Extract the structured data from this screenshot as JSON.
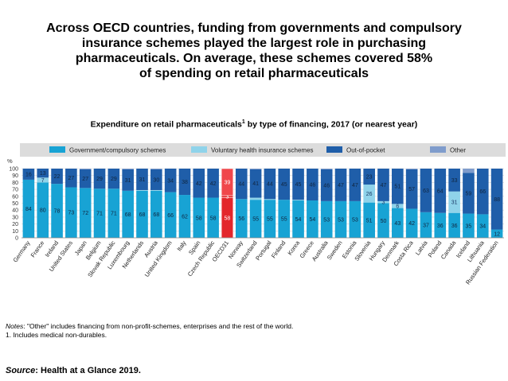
{
  "headline": {
    "line1": "Across OECD countries, funding from governments and compulsory",
    "line2": "insurance schemes played the largest role in purchasing",
    "line3": "pharmaceuticals. On average, these schemes covered 58%",
    "line4": "of spending on retail pharmaceuticals"
  },
  "subtitle": {
    "text": "Expenditure on retail pharmaceuticals",
    "footnote_mark": "1",
    "suffix": " by type of financing, 2017 (or nearest year)"
  },
  "notes": {
    "label": "Notes",
    "line1": ": \"Other\" includes financing from non-profit-schemes, enterprises and the rest of the world.",
    "line2": "1. Includes medical non-durables."
  },
  "source": {
    "label": "Source",
    "text": ": Health at a Glance 2019."
  },
  "colors": {
    "government": "#18a3d4",
    "voluntary": "#8fd3ea",
    "out_of_pocket": "#1f5ea9",
    "other": "#7f9ccc",
    "highlight": "#e3262b",
    "legend_band": "#dcdcdc"
  },
  "chart_data": {
    "type": "bar",
    "stacked": true,
    "y_unit": "%",
    "ylim": [
      0,
      100
    ],
    "yticks": [
      0,
      10,
      20,
      30,
      40,
      50,
      60,
      70,
      80,
      90,
      100
    ],
    "legend_position": "top",
    "highlight_category": "OECD31",
    "categories": [
      "Germany",
      "France",
      "Ireland",
      "United States",
      "Japan",
      "Belgium",
      "Slovak Republic",
      "Luxembourg",
      "Netherlands",
      "Austria",
      "United Kingdom",
      "Italy",
      "Spain",
      "Czech Republic",
      "OECD31",
      "Norway",
      "Switzerland",
      "Portugal",
      "Finland",
      "Korea",
      "Greece",
      "Australia",
      "Sweden",
      "Estonia",
      "Slovenia",
      "Hungary",
      "Denmark",
      "Costa Rica",
      "Latvia",
      "Poland",
      "Canada",
      "Iceland",
      "Lithuania",
      "Russian Federation"
    ],
    "series": [
      {
        "name": "Government/compulsory schemes",
        "values": [
          84,
          80,
          78,
          73,
          72,
          71,
          71,
          68,
          68,
          68,
          66,
          62,
          58,
          58,
          58,
          56,
          55,
          55,
          55,
          54,
          54,
          53,
          53,
          53,
          51,
          50,
          43,
          42,
          37,
          36,
          36,
          35,
          34,
          12
        ],
        "labels": [
          "84",
          "80",
          "78",
          "73",
          "72",
          "71",
          "71",
          "68",
          "68",
          "68",
          "66",
          "62",
          "58",
          "58",
          "58",
          "56",
          "55",
          "55",
          "55",
          "54",
          "54",
          "53",
          "53",
          "53",
          "51",
          "50",
          "43",
          "42",
          "37",
          "36",
          "36",
          "35",
          "34",
          "12"
        ]
      },
      {
        "name": "Voluntary health insurance schemes",
        "values": [
          0,
          7,
          0,
          0,
          0,
          0,
          0,
          0,
          1,
          1,
          0,
          0,
          0,
          0,
          3,
          0,
          3,
          1,
          0,
          1,
          0,
          0,
          0,
          0,
          26,
          3,
          6,
          0,
          0,
          0,
          31,
          0,
          0,
          0
        ],
        "labels": [
          "",
          "7",
          "",
          "",
          "",
          "",
          "",
          "",
          "",
          "",
          "",
          "",
          "",
          "",
          "3",
          "",
          "",
          "",
          "",
          "",
          "",
          "",
          "",
          "",
          "26",
          "3",
          "6",
          "",
          "",
          "",
          "31",
          "",
          "",
          ""
        ]
      },
      {
        "name": "Out-of-pocket",
        "values": [
          16,
          13,
          22,
          27,
          27,
          29,
          29,
          31,
          31,
          30,
          34,
          38,
          42,
          42,
          39,
          44,
          41,
          44,
          45,
          45,
          46,
          46,
          47,
          47,
          23,
          47,
          51,
          57,
          63,
          64,
          33,
          59,
          66,
          88
        ],
        "labels": [
          "16",
          "13",
          "22",
          "27",
          "27",
          "29",
          "29",
          "31",
          "31",
          "30",
          "34",
          "38",
          "42",
          "42",
          "39",
          "44",
          "41",
          "44",
          "45",
          "45",
          "46",
          "46",
          "47",
          "47",
          "23",
          "47",
          "51",
          "57",
          "63",
          "64",
          "33",
          "59",
          "66",
          "88"
        ]
      },
      {
        "name": "Other",
        "values": [
          0,
          0,
          0,
          0,
          1,
          0,
          0,
          1,
          0,
          1,
          0,
          0,
          0,
          0,
          0,
          0,
          1,
          0,
          0,
          0,
          0,
          1,
          0,
          0,
          0,
          0,
          0,
          1,
          0,
          0,
          0,
          6,
          0,
          0
        ],
        "labels": [
          "",
          "",
          "",
          "",
          "",
          "",
          "",
          "",
          "",
          "",
          "",
          "",
          "",
          "",
          "",
          "",
          "",
          "",
          "",
          "",
          "",
          "",
          "",
          "",
          "",
          "",
          "",
          "",
          "",
          "",
          "",
          "",
          "",
          ""
        ]
      }
    ]
  }
}
